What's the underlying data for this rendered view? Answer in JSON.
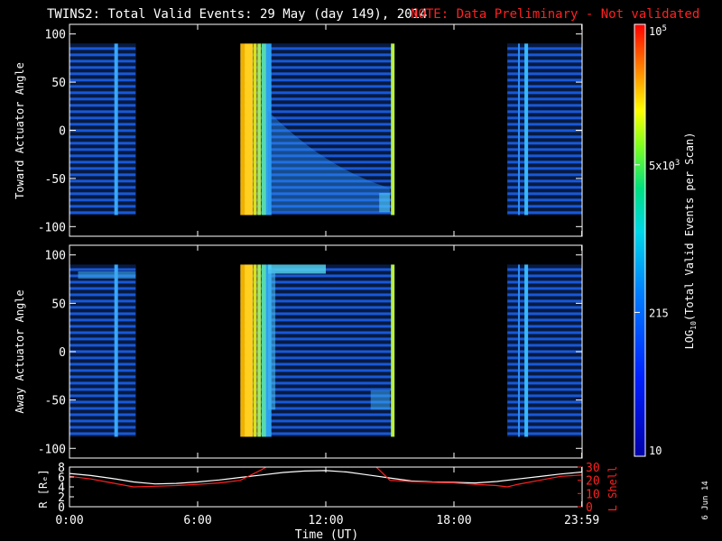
{
  "title": {
    "main": "TWINS2: Total Valid Events: 29 May (day 149), 2014",
    "note": "NOTE: Data Preliminary - Not validated",
    "note_color": "#ff2020"
  },
  "footer": {
    "date_stamp": "6 Jun 14"
  },
  "chart_data": [
    {
      "type": "heatmap",
      "ylabel": "Toward Actuator Angle",
      "ylim": [
        -110,
        110
      ],
      "yticks": [
        100,
        50,
        0,
        -50,
        -100
      ],
      "angle_range": [
        -88,
        90
      ],
      "time_range_hours": [
        0,
        24
      ],
      "data_blocks_hours": [
        [
          0,
          3.1
        ],
        [
          8.0,
          15.2
        ],
        [
          20.5,
          24.0
        ]
      ],
      "colorbar": {
        "label_prefix": "LOG",
        "label_sub": "10",
        "label_suffix": "(Total Valid Events per Scan)",
        "tick_labels": [
          "10",
          "215",
          "5x10^3",
          "10^5"
        ],
        "tick_values": [
          10,
          215,
          5000,
          100000
        ],
        "colormap": "rainbow (blue to red)"
      }
    },
    {
      "type": "heatmap",
      "ylabel": "Away Actuator Angle",
      "ylim": [
        -110,
        110
      ],
      "yticks": [
        100,
        50,
        0,
        -50,
        -100
      ],
      "angle_range": [
        -88,
        90
      ],
      "time_range_hours": [
        0,
        24
      ],
      "data_blocks_hours": [
        [
          0,
          3.1
        ],
        [
          8.0,
          15.2
        ],
        [
          20.5,
          24.0
        ]
      ]
    },
    {
      "type": "line",
      "xlabel": "Time (UT)",
      "xticks": [
        "0:00",
        "6:00",
        "12:00",
        "18:00",
        "23:59"
      ],
      "xtick_hours": [
        0,
        6,
        12,
        18,
        23.983
      ],
      "left_axis": {
        "label": "R [Rₑ]",
        "ylim": [
          0,
          8
        ],
        "yticks": [
          0,
          2,
          4,
          6,
          8
        ]
      },
      "right_axis": {
        "label": "L Shell",
        "ylim": [
          0,
          30
        ],
        "yticks": [
          0,
          10,
          20,
          30
        ],
        "color": "#ff2020"
      },
      "series": [
        {
          "name": "R [Rₑ]",
          "color": "#ffffff",
          "axis": "left",
          "x": [
            0,
            1,
            2,
            3,
            4,
            5,
            6,
            7,
            8,
            9,
            10,
            11,
            12,
            13,
            14,
            15,
            16,
            17,
            18,
            19,
            20,
            21,
            22,
            23,
            24
          ],
          "y": [
            6.7,
            6.3,
            5.7,
            5.0,
            4.6,
            4.7,
            5.0,
            5.4,
            5.9,
            6.4,
            6.9,
            7.2,
            7.3,
            7.0,
            6.4,
            5.8,
            5.2,
            5.0,
            4.9,
            4.8,
            5.1,
            5.6,
            6.1,
            6.6,
            7.0
          ]
        },
        {
          "name": "L Shell",
          "color": "#ff2020",
          "axis": "right",
          "x": [
            0,
            1,
            2,
            3,
            4,
            5,
            6,
            7,
            8,
            9,
            9.3,
            14.3,
            15,
            16,
            17,
            18,
            19,
            20,
            20.5,
            21,
            22,
            23,
            24
          ],
          "y": [
            23,
            21,
            18,
            15,
            15.5,
            16,
            17,
            18,
            20,
            28,
            31,
            31,
            20,
            19,
            18.5,
            18,
            17,
            16,
            15,
            17,
            20,
            23,
            24
          ]
        }
      ]
    }
  ]
}
